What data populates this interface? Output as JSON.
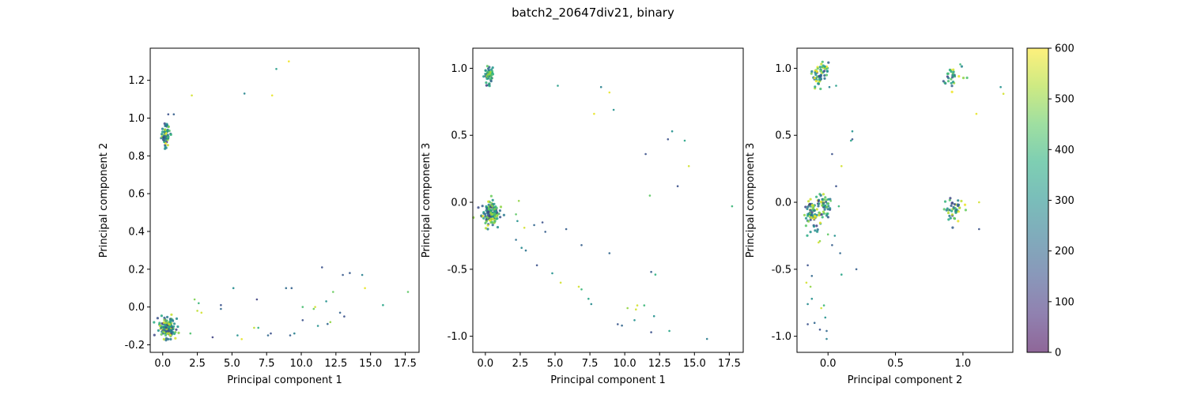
{
  "figure": {
    "title": "batch2_20647div21, binary"
  },
  "chart_data": [
    {
      "type": "scatter",
      "xlabel": "Principal component 1",
      "ylabel": "Principal component 2",
      "xlim": [
        -0.9,
        18.5
      ],
      "ylim": [
        -0.24,
        1.37
      ],
      "xticks": [
        0.0,
        2.5,
        5.0,
        7.5,
        10.0,
        12.5,
        15.0,
        17.5
      ],
      "yticks": [
        -0.2,
        0.0,
        0.2,
        0.4,
        0.6,
        0.8,
        1.0,
        1.2
      ],
      "clusters": [
        {
          "cx": 0.2,
          "cy": 0.91,
          "sx": 0.15,
          "sy": 0.03,
          "n": 70,
          "vmin": 100,
          "vmax": 600
        },
        {
          "cx": 0.35,
          "cy": -0.11,
          "sx": 0.28,
          "sy": 0.025,
          "n": 160,
          "vmin": 100,
          "vmax": 600
        }
      ],
      "points": [
        [
          2.1,
          1.12,
          560
        ],
        [
          5.9,
          1.13,
          270
        ],
        [
          7.9,
          1.12,
          580
        ],
        [
          8.2,
          1.26,
          330
        ],
        [
          9.1,
          1.3,
          590
        ],
        [
          0.4,
          1.02,
          150
        ],
        [
          0.8,
          1.02,
          180
        ],
        [
          11.5,
          0.21,
          150
        ],
        [
          13.5,
          0.18,
          170
        ],
        [
          14.4,
          0.17,
          260
        ],
        [
          14.6,
          0.1,
          580
        ],
        [
          15.9,
          0.01,
          350
        ],
        [
          17.7,
          0.08,
          450
        ],
        [
          5.1,
          0.1,
          290
        ],
        [
          8.9,
          0.1,
          210
        ],
        [
          9.3,
          0.1,
          190
        ],
        [
          12.3,
          0.08,
          460
        ],
        [
          13.0,
          0.17,
          170
        ],
        [
          2.3,
          0.04,
          480
        ],
        [
          2.6,
          0.02,
          400
        ],
        [
          4.2,
          0.01,
          150
        ],
        [
          6.8,
          0.04,
          120
        ],
        [
          10.1,
          0.0,
          420
        ],
        [
          11.0,
          0.0,
          560
        ],
        [
          11.8,
          0.03,
          300
        ],
        [
          12.8,
          -0.03,
          190
        ],
        [
          13.1,
          -0.05,
          150
        ],
        [
          2.0,
          -0.14,
          430
        ],
        [
          2.8,
          -0.03,
          560
        ],
        [
          3.6,
          -0.16,
          120
        ],
        [
          4.2,
          -0.01,
          200
        ],
        [
          5.7,
          -0.17,
          580
        ],
        [
          6.6,
          -0.11,
          540
        ],
        [
          6.9,
          -0.11,
          380
        ],
        [
          7.6,
          -0.15,
          200
        ],
        [
          7.8,
          -0.14,
          150
        ],
        [
          9.2,
          -0.15,
          180
        ],
        [
          9.5,
          -0.14,
          260
        ],
        [
          10.1,
          -0.07,
          150
        ],
        [
          10.9,
          -0.01,
          460
        ],
        [
          11.2,
          -0.1,
          300
        ],
        [
          11.9,
          -0.09,
          200
        ],
        [
          12.1,
          -0.08,
          500
        ],
        [
          2.5,
          -0.02,
          540
        ],
        [
          5.4,
          -0.15,
          300
        ]
      ]
    },
    {
      "type": "scatter",
      "xlabel": "Principal component 1",
      "ylabel": "Principal component 3",
      "xlim": [
        -0.9,
        18.5
      ],
      "ylim": [
        -1.12,
        1.15
      ],
      "xticks": [
        0.0,
        2.5,
        5.0,
        7.5,
        10.0,
        12.5,
        15.0,
        17.5
      ],
      "yticks": [
        -1.0,
        -0.5,
        0.0,
        0.5,
        1.0
      ],
      "clusters": [
        {
          "cx": 0.2,
          "cy": 0.94,
          "sx": 0.15,
          "sy": 0.04,
          "n": 60,
          "vmin": 100,
          "vmax": 600
        },
        {
          "cx": 0.35,
          "cy": -0.08,
          "sx": 0.3,
          "sy": 0.04,
          "n": 170,
          "vmin": 100,
          "vmax": 600
        }
      ],
      "points": [
        [
          5.2,
          0.87,
          330
        ],
        [
          8.3,
          0.86,
          260
        ],
        [
          8.9,
          0.82,
          580
        ],
        [
          9.2,
          0.69,
          300
        ],
        [
          7.8,
          0.66,
          580
        ],
        [
          13.4,
          0.53,
          300
        ],
        [
          13.1,
          0.47,
          150
        ],
        [
          14.3,
          0.46,
          350
        ],
        [
          11.5,
          0.36,
          150
        ],
        [
          14.6,
          0.27,
          560
        ],
        [
          13.8,
          0.12,
          150
        ],
        [
          11.8,
          0.05,
          450
        ],
        [
          17.7,
          -0.03,
          400
        ],
        [
          2.4,
          0.01,
          500
        ],
        [
          2.2,
          -0.09,
          450
        ],
        [
          2.3,
          -0.14,
          300
        ],
        [
          3.5,
          -0.17,
          200
        ],
        [
          4.1,
          -0.15,
          150
        ],
        [
          4.3,
          -0.22,
          180
        ],
        [
          2.8,
          -0.19,
          560
        ],
        [
          5.8,
          -0.2,
          180
        ],
        [
          2.2,
          -0.28,
          220
        ],
        [
          2.6,
          -0.34,
          280
        ],
        [
          2.9,
          -0.36,
          230
        ],
        [
          3.7,
          -0.47,
          150
        ],
        [
          4.8,
          -0.53,
          300
        ],
        [
          5.4,
          -0.6,
          560
        ],
        [
          6.7,
          -0.63,
          560
        ],
        [
          6.9,
          -0.32,
          180
        ],
        [
          7.4,
          -0.72,
          350
        ],
        [
          7.6,
          -0.76,
          280
        ],
        [
          8.9,
          -0.38,
          200
        ],
        [
          9.5,
          -0.91,
          160
        ],
        [
          9.8,
          -0.92,
          200
        ],
        [
          10.2,
          -0.79,
          500
        ],
        [
          10.8,
          -0.8,
          560
        ],
        [
          10.9,
          -0.77,
          560
        ],
        [
          11.4,
          -0.77,
          400
        ],
        [
          10.7,
          -0.88,
          300
        ],
        [
          11.9,
          -0.52,
          180
        ],
        [
          12.2,
          -0.54,
          380
        ],
        [
          12.1,
          -0.85,
          300
        ],
        [
          11.9,
          -0.97,
          150
        ],
        [
          13.2,
          -0.96,
          350
        ],
        [
          6.9,
          -0.65,
          400
        ],
        [
          15.9,
          -1.02,
          250
        ]
      ]
    },
    {
      "type": "scatter",
      "xlabel": "Principal component 2",
      "ylabel": "Principal component 3",
      "xlim": [
        -0.23,
        1.37
      ],
      "ylim": [
        -1.12,
        1.15
      ],
      "xticks": [
        0.0,
        0.5,
        1.0
      ],
      "yticks": [
        -1.0,
        -0.5,
        0.0,
        0.5,
        1.0
      ],
      "colorbar": {
        "min": 0,
        "max": 600,
        "ticks": [
          0,
          100,
          200,
          300,
          400,
          500,
          600
        ]
      },
      "clusters": [
        {
          "cx": -0.09,
          "cy": 0.93,
          "sx": 0.03,
          "sy": 0.04,
          "n": 35,
          "vmin": 100,
          "vmax": 600
        },
        {
          "cx": -0.03,
          "cy": 0.98,
          "sx": 0.02,
          "sy": 0.04,
          "n": 25,
          "vmin": 100,
          "vmax": 600
        },
        {
          "cx": 0.92,
          "cy": 0.94,
          "sx": 0.04,
          "sy": 0.04,
          "n": 30,
          "vmin": 100,
          "vmax": 600
        },
        {
          "cx": -0.12,
          "cy": -0.08,
          "sx": 0.03,
          "sy": 0.05,
          "n": 70,
          "vmin": 100,
          "vmax": 600
        },
        {
          "cx": -0.03,
          "cy": -0.02,
          "sx": 0.025,
          "sy": 0.05,
          "n": 50,
          "vmin": 100,
          "vmax": 600
        },
        {
          "cx": 0.93,
          "cy": -0.06,
          "sx": 0.04,
          "sy": 0.04,
          "n": 45,
          "vmin": 100,
          "vmax": 600
        }
      ],
      "points": [
        [
          0.06,
          0.87,
          330
        ],
        [
          0.01,
          0.86,
          260
        ],
        [
          1.28,
          0.86,
          300
        ],
        [
          1.3,
          0.81,
          560
        ],
        [
          1.1,
          0.66,
          580
        ],
        [
          0.18,
          0.53,
          300
        ],
        [
          0.18,
          0.47,
          150
        ],
        [
          0.17,
          0.46,
          350
        ],
        [
          0.03,
          0.36,
          150
        ],
        [
          0.1,
          0.27,
          560
        ],
        [
          0.06,
          0.12,
          150
        ],
        [
          0.98,
          1.03,
          400
        ],
        [
          1.12,
          -0.2,
          150
        ],
        [
          1.12,
          0.0,
          560
        ],
        [
          0.02,
          0.01,
          450
        ],
        [
          0.08,
          -0.03,
          400
        ],
        [
          0.21,
          -0.5,
          180
        ],
        [
          -0.15,
          -0.47,
          150
        ],
        [
          -0.12,
          -0.55,
          200
        ],
        [
          -0.16,
          -0.6,
          560
        ],
        [
          -0.13,
          -0.63,
          500
        ],
        [
          -0.12,
          -0.72,
          300
        ],
        [
          -0.15,
          -0.76,
          280
        ],
        [
          -0.1,
          -0.9,
          200
        ],
        [
          -0.15,
          -0.91,
          150
        ],
        [
          -0.05,
          -0.79,
          560
        ],
        [
          -0.03,
          -0.77,
          400
        ],
        [
          -0.02,
          -0.86,
          300
        ],
        [
          -0.06,
          -0.95,
          150
        ],
        [
          -0.01,
          -0.96,
          200
        ],
        [
          0.1,
          -0.54,
          350
        ],
        [
          0.03,
          -0.32,
          180
        ],
        [
          -0.06,
          -0.29,
          500
        ],
        [
          0.09,
          -0.38,
          200
        ],
        [
          -0.01,
          -1.02,
          260
        ],
        [
          0.05,
          -0.25,
          300
        ],
        [
          -0.07,
          -0.3,
          560
        ],
        [
          0.0,
          -0.24,
          450
        ]
      ]
    }
  ]
}
